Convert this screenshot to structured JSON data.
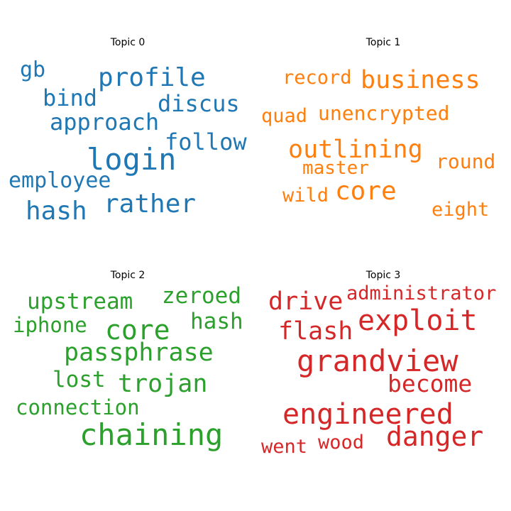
{
  "topics": [
    {
      "title": "Topic 0",
      "color": "#1f77b4",
      "words": [
        "gb",
        "profile",
        "bind",
        "discus",
        "approach",
        "follow",
        "login",
        "employee",
        "rather",
        "hash"
      ]
    },
    {
      "title": "Topic 1",
      "color": "#ff7f0e",
      "words": [
        "record",
        "business",
        "quad",
        "unencrypted",
        "outlining",
        "master",
        "round",
        "wild",
        "core",
        "eight"
      ]
    },
    {
      "title": "Topic 2",
      "color": "#2ca02c",
      "words": [
        "upstream",
        "zeroed",
        "iphone",
        "core",
        "hash",
        "passphrase",
        "lost",
        "trojan",
        "connection",
        "chaining"
      ]
    },
    {
      "title": "Topic 3",
      "color": "#d62728",
      "words": [
        "drive",
        "administrator",
        "exploit",
        "flash",
        "grandview",
        "become",
        "engineered",
        "danger",
        "went",
        "wood"
      ]
    }
  ]
}
